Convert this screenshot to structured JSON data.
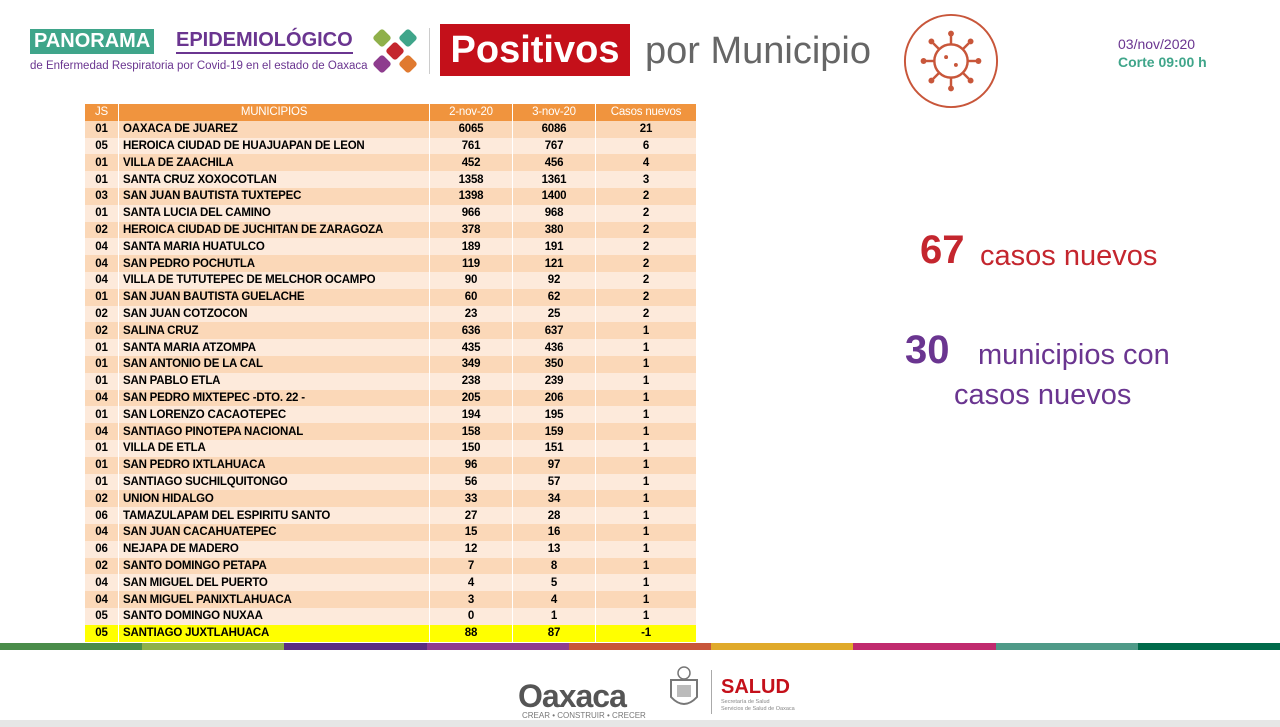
{
  "header": {
    "panorama": "PANORAMA",
    "epidemiologico": "EPIDEMIOLÓGICO",
    "subtitle": "de Enfermedad Respiratoria por Covid-19 en el estado de Oaxaca",
    "positivos": "Positivos",
    "por_municipio": "por Municipio",
    "date": "03/nov/2020",
    "corte": "Corte 09:00 h",
    "icon": "virus-icon"
  },
  "table": {
    "headers": [
      "JS",
      "MUNICIPIOS",
      "2-nov-20",
      "3-nov-20",
      "Casos nuevos"
    ],
    "rows": [
      [
        "01",
        "OAXACA DE JUAREZ",
        "6065",
        "6086",
        "21"
      ],
      [
        "05",
        "HEROICA CIUDAD DE HUAJUAPAN DE LEON",
        "761",
        "767",
        "6"
      ],
      [
        "01",
        "VILLA DE ZAACHILA",
        "452",
        "456",
        "4"
      ],
      [
        "01",
        "SANTA CRUZ XOXOCOTLAN",
        "1358",
        "1361",
        "3"
      ],
      [
        "03",
        "SAN JUAN BAUTISTA TUXTEPEC",
        "1398",
        "1400",
        "2"
      ],
      [
        "01",
        "SANTA LUCIA DEL CAMINO",
        "966",
        "968",
        "2"
      ],
      [
        "02",
        "HEROICA CIUDAD DE JUCHITAN DE ZARAGOZA",
        "378",
        "380",
        "2"
      ],
      [
        "04",
        "SANTA MARIA HUATULCO",
        "189",
        "191",
        "2"
      ],
      [
        "04",
        "SAN PEDRO POCHUTLA",
        "119",
        "121",
        "2"
      ],
      [
        "04",
        "VILLA DE TUTUTEPEC DE MELCHOR OCAMPO",
        "90",
        "92",
        "2"
      ],
      [
        "01",
        "SAN JUAN BAUTISTA GUELACHE",
        "60",
        "62",
        "2"
      ],
      [
        "02",
        "SAN JUAN COTZOCON",
        "23",
        "25",
        "2"
      ],
      [
        "02",
        "SALINA CRUZ",
        "636",
        "637",
        "1"
      ],
      [
        "01",
        "SANTA MARIA ATZOMPA",
        "435",
        "436",
        "1"
      ],
      [
        "01",
        "SAN ANTONIO DE LA CAL",
        "349",
        "350",
        "1"
      ],
      [
        "01",
        "SAN PABLO ETLA",
        "238",
        "239",
        "1"
      ],
      [
        "04",
        "SAN PEDRO MIXTEPEC -DTO. 22 -",
        "205",
        "206",
        "1"
      ],
      [
        "01",
        "SAN LORENZO CACAOTEPEC",
        "194",
        "195",
        "1"
      ],
      [
        "04",
        "SANTIAGO PINOTEPA NACIONAL",
        "158",
        "159",
        "1"
      ],
      [
        "01",
        "VILLA DE ETLA",
        "150",
        "151",
        "1"
      ],
      [
        "01",
        "SAN PEDRO IXTLAHUACA",
        "96",
        "97",
        "1"
      ],
      [
        "01",
        "SANTIAGO SUCHILQUITONGO",
        "56",
        "57",
        "1"
      ],
      [
        "02",
        "UNION HIDALGO",
        "33",
        "34",
        "1"
      ],
      [
        "06",
        "TAMAZULAPAM DEL ESPIRITU SANTO",
        "27",
        "28",
        "1"
      ],
      [
        "04",
        "SAN JUAN CACAHUATEPEC",
        "15",
        "16",
        "1"
      ],
      [
        "06",
        "NEJAPA DE MADERO",
        "12",
        "13",
        "1"
      ],
      [
        "02",
        "SANTO DOMINGO PETAPA",
        "7",
        "8",
        "1"
      ],
      [
        "04",
        "SAN MIGUEL DEL PUERTO",
        "4",
        "5",
        "1"
      ],
      [
        "04",
        "SAN MIGUEL PANIXTLAHUACA",
        "3",
        "4",
        "1"
      ],
      [
        "05",
        "SANTO DOMINGO NUXAA",
        "0",
        "1",
        "1"
      ],
      [
        "05",
        "SANTIAGO JUXTLAHUACA",
        "88",
        "87",
        "-1"
      ]
    ],
    "highlight_color": "#ffff00"
  },
  "summary": {
    "new_cases": "67",
    "new_cases_label": "casos nuevos",
    "municipios": "30",
    "municipios_label_1": "municipios con",
    "municipios_label_2": "casos nuevos"
  },
  "footer": {
    "oaxaca": "Oaxaca",
    "oaxaca_sub": "CREAR • CONSTRUIR • CRECER",
    "salud": "SALUD",
    "salud_sub_1": "Secretaría de Salud",
    "salud_sub_2": "Servicios de Salud de Oaxaca",
    "stripe_colors": [
      "#4a8c4a",
      "#8fb04a",
      "#5a2d82",
      "#8e3c8e",
      "#c8563a",
      "#e0aa2a",
      "#c02a6e",
      "#4f9a88",
      "#006a4a"
    ]
  }
}
